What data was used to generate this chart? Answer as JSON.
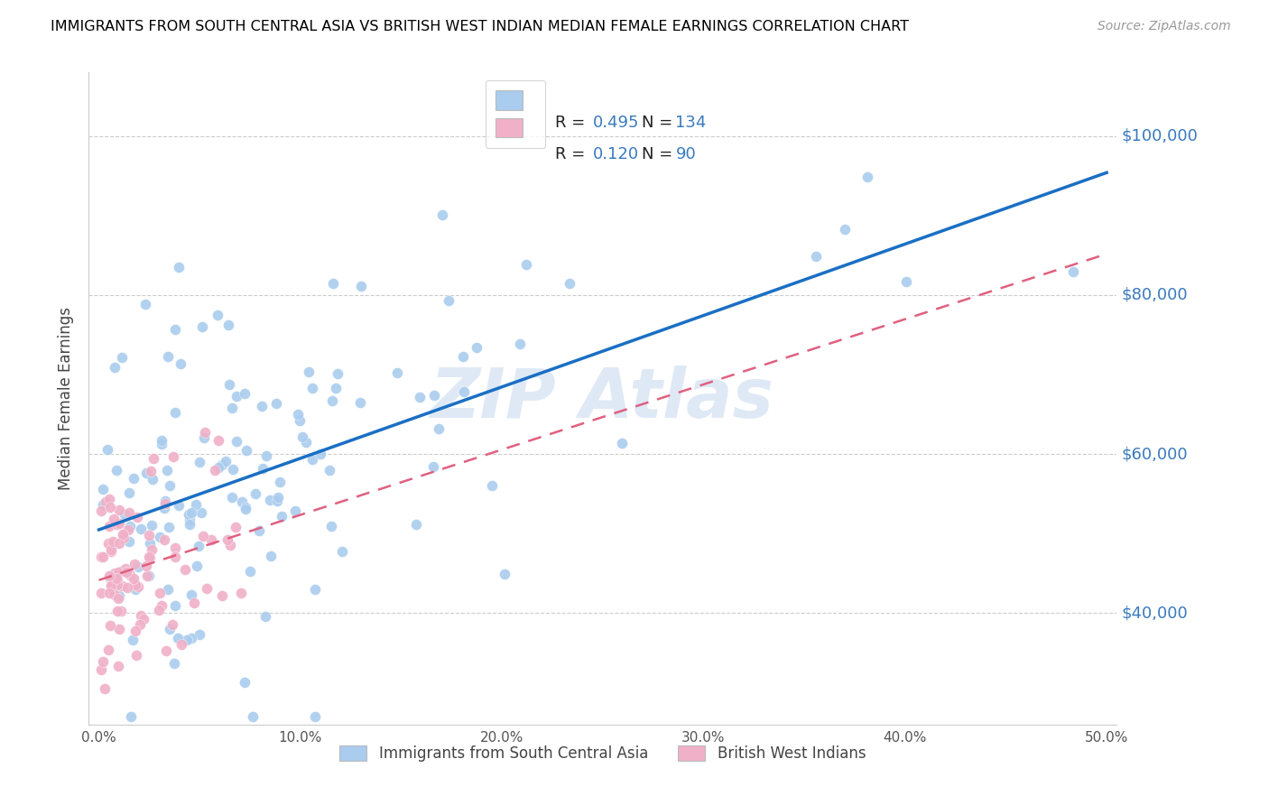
{
  "title": "IMMIGRANTS FROM SOUTH CENTRAL ASIA VS BRITISH WEST INDIAN MEDIAN FEMALE EARNINGS CORRELATION CHART",
  "source": "Source: ZipAtlas.com",
  "ylabel": "Median Female Earnings",
  "ytick_values": [
    40000,
    60000,
    80000,
    100000
  ],
  "ytick_labels": [
    "$40,000",
    "$60,000",
    "$80,000",
    "$100,000"
  ],
  "xtick_values": [
    0.0,
    0.1,
    0.2,
    0.3,
    0.4,
    0.5
  ],
  "xtick_labels": [
    "0.0%",
    "10.0%",
    "20.0%",
    "30.0%",
    "40.0%",
    "50.0%"
  ],
  "ymin": 26000,
  "ymax": 108000,
  "xmin": -0.005,
  "xmax": 0.505,
  "R_blue": 0.495,
  "N_blue": 134,
  "R_pink": 0.12,
  "N_pink": 90,
  "blue_scatter_color": "#aaccee",
  "pink_scatter_color": "#f0b0c8",
  "line_blue_color": "#1a6fc4",
  "line_pink_color": "#e06080",
  "legend_label_blue": "Immigrants from South Central Asia",
  "legend_label_pink": "British West Indians",
  "watermark": "ZIP Atlas",
  "text_color_blue": "#3a7abf",
  "text_color_dark": "#222222",
  "grid_color": "#cccccc",
  "title_fontsize": 11.5,
  "axis_label_fontsize": 12,
  "tick_fontsize": 11,
  "legend_fontsize": 12,
  "source_fontsize": 10
}
